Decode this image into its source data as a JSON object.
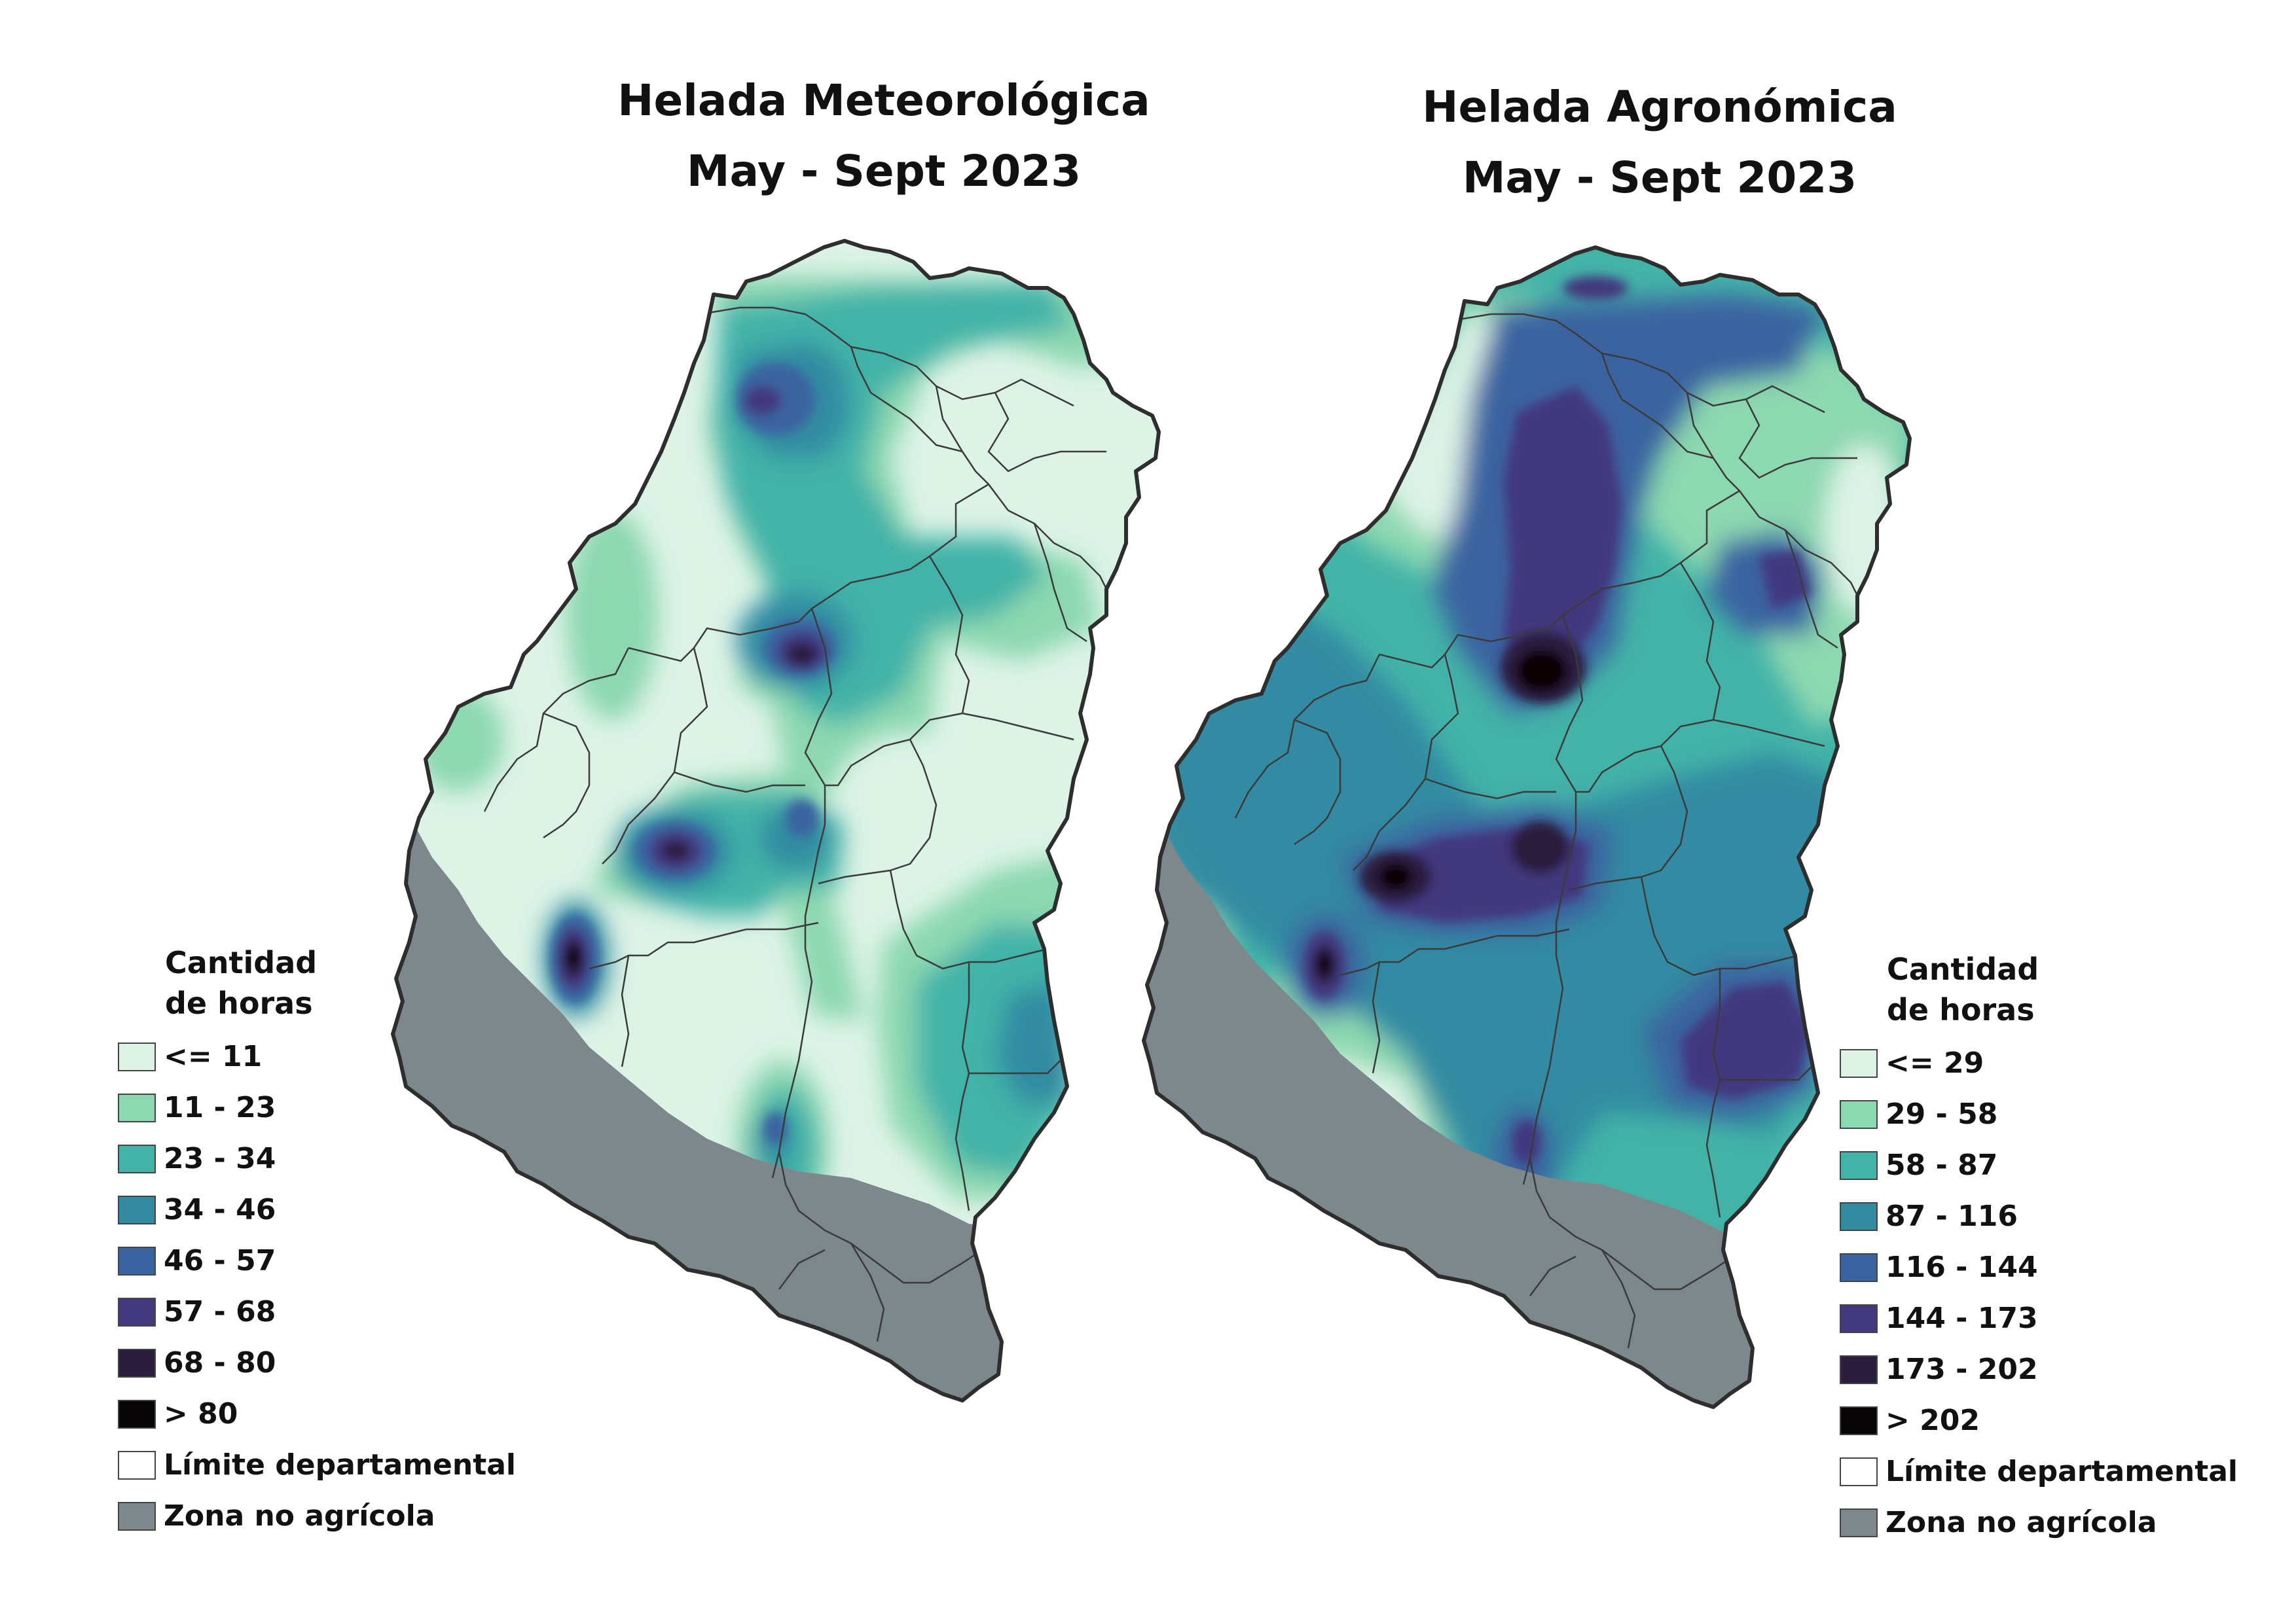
{
  "maps": [
    {
      "title_line1": "Helada Meteorológica",
      "title_line2": "May - Sept 2023",
      "legend_title_line1": "Cantidad",
      "legend_title_line2": "de horas",
      "legend": [
        {
          "label": "<= 11",
          "color": "#dcf3e6"
        },
        {
          "label": "11 - 23",
          "color": "#8cd8b0"
        },
        {
          "label": "23 - 34",
          "color": "#43b3a8"
        },
        {
          "label": "34 - 46",
          "color": "#338ba2"
        },
        {
          "label": "46 - 57",
          "color": "#3a64a0"
        },
        {
          "label": "57 - 68",
          "color": "#42397e"
        },
        {
          "label": "68 - 80",
          "color": "#2b1d3d"
        },
        {
          "label": "> 80",
          "color": "#080506"
        },
        {
          "label": "Límite departamental",
          "color": "#ffffff"
        },
        {
          "label": "Zona no agrícola",
          "color": "#7d888d"
        }
      ]
    },
    {
      "title_line1": "Helada Agronómica",
      "title_line2": "May - Sept 2023",
      "legend_title_line1": "Cantidad",
      "legend_title_line2": "de horas",
      "legend": [
        {
          "label": "<= 29",
          "color": "#dcf3e6"
        },
        {
          "label": "29 - 58",
          "color": "#8cd8b0"
        },
        {
          "label": "58 - 87",
          "color": "#43b3a8"
        },
        {
          "label": "87 - 116",
          "color": "#338ba2"
        },
        {
          "label": "116 - 144",
          "color": "#3a64a0"
        },
        {
          "label": "144 - 173",
          "color": "#42397e"
        },
        {
          "label": "173 - 202",
          "color": "#2b1d3d"
        },
        {
          "label": "> 202",
          "color": "#080506"
        },
        {
          "label": "Límite departamental",
          "color": "#ffffff"
        },
        {
          "label": "Zona no agrícola",
          "color": "#7d888d"
        }
      ]
    }
  ]
}
